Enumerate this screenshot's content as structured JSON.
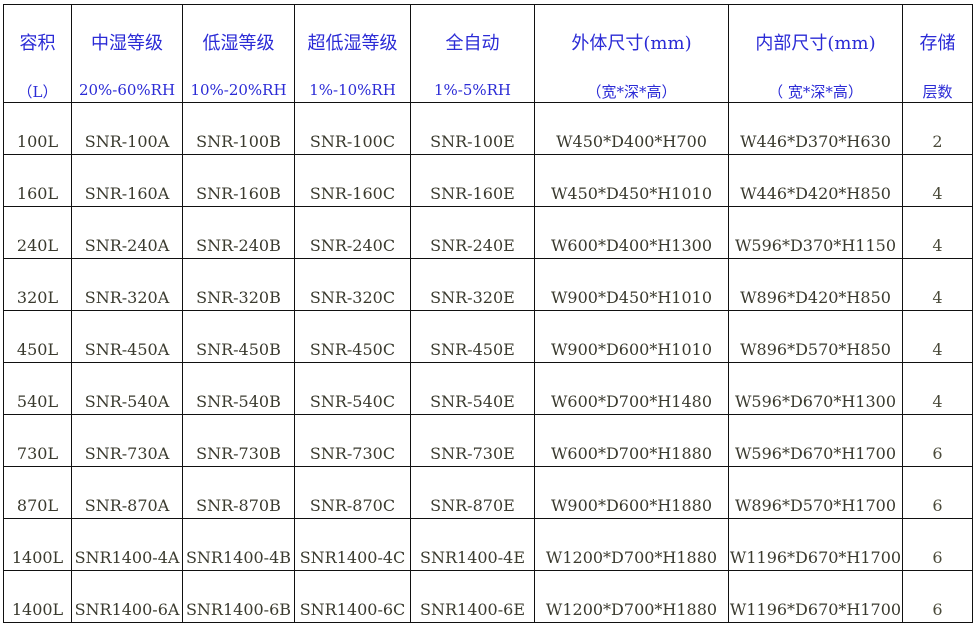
{
  "headers": [
    {
      "line1": "容积",
      "line2": "（L）"
    },
    {
      "line1": "中湿等级",
      "line2": "20%-60%RH"
    },
    {
      "line1": "低湿等级",
      "line2": "10%-20%RH"
    },
    {
      "line1": "超低湿等级",
      "line2": "1%-10%RH"
    },
    {
      "line1": "全自动",
      "line2": "1%-5%RH"
    },
    {
      "line1": "外体尺寸(mm)",
      "line2": "（宽*深*高）"
    },
    {
      "line1": "内部尺寸(mm)",
      "line2": "（  宽*深*高）"
    },
    {
      "line1": "存储",
      "line2": "层数"
    }
  ],
  "rows": [
    [
      "100L",
      "SNR-100A",
      "SNR-100B",
      "SNR-100C",
      "SNR-100E",
      "W450*D400*H700",
      "W446*D370*H630",
      "2"
    ],
    [
      "160L",
      "SNR-160A",
      "SNR-160B",
      "SNR-160C",
      "SNR-160E",
      "W450*D450*H1010",
      "W446*D420*H850",
      "4"
    ],
    [
      "240L",
      "SNR-240A",
      "SNR-240B",
      "SNR-240C",
      "SNR-240E",
      "W600*D400*H1300",
      "W596*D370*H1150",
      "4"
    ],
    [
      "320L",
      "SNR-320A",
      "SNR-320B",
      "SNR-320C",
      "SNR-320E",
      "W900*D450*H1010",
      "W896*D420*H850",
      "4"
    ],
    [
      "450L",
      "SNR-450A",
      "SNR-450B",
      "SNR-450C",
      "SNR-450E",
      "W900*D600*H1010",
      "W896*D570*H850",
      "4"
    ],
    [
      "540L",
      "SNR-540A",
      "SNR-540B",
      "SNR-540C",
      "SNR-540E",
      "W600*D700*H1480",
      "W596*D670*H1300",
      "4"
    ],
    [
      "730L",
      "SNR-730A",
      "SNR-730B",
      "SNR-730C",
      "SNR-730E",
      "W600*D700*H1880",
      "W596*D670*H1700",
      "6"
    ],
    [
      "870L",
      "SNR-870A",
      "SNR-870B",
      "SNR-870C",
      "SNR-870E",
      "W900*D600*H1880",
      "W896*D570*H1700",
      "6"
    ],
    [
      "1400L",
      "SNR1400-4A",
      "SNR1400-4B",
      "SNR1400-4C",
      "SNR1400-4E",
      "W1200*D700*H1880",
      "W1196*D670*H1700",
      "6"
    ],
    [
      "1400L",
      "SNR1400-6A",
      "SNR1400-6B",
      "SNR1400-6C",
      "SNR1400-6E",
      "W1200*D700*H1880",
      "W1196*D670*H1700",
      "6"
    ]
  ]
}
